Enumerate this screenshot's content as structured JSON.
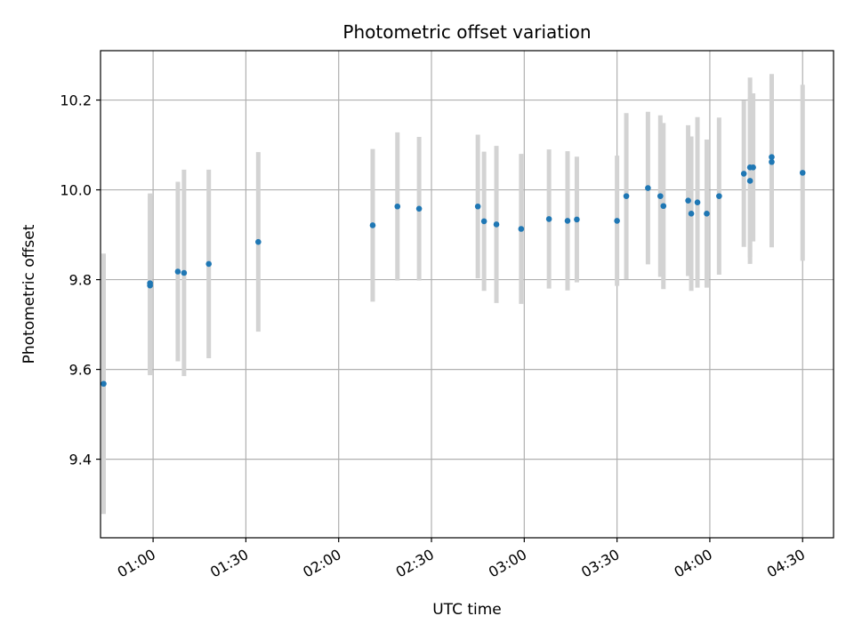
{
  "chart_data": {
    "type": "scatter",
    "title": "Photometric offset variation",
    "xlabel": "UTC time",
    "ylabel": "Photometric offset",
    "x_ticks": [
      "01:00",
      "01:30",
      "02:00",
      "02:30",
      "03:00",
      "03:30",
      "04:00",
      "04:30"
    ],
    "y_ticks": [
      "9.4",
      "9.6",
      "9.8",
      "10.0",
      "10.2"
    ],
    "xlim": [
      "00:43",
      "04:40"
    ],
    "ylim": [
      9.225,
      10.31
    ],
    "grid": true,
    "legend": "none",
    "colors": {
      "point": "#1f77b4",
      "errorbar": "#d3d3d3",
      "grid": "#b0b0b0"
    },
    "points": [
      {
        "t": "00:44",
        "y": 9.568,
        "err": 0.29
      },
      {
        "t": "00:59",
        "y": 9.787,
        "err": 0.2
      },
      {
        "t": "00:59",
        "y": 9.792,
        "err": 0.2
      },
      {
        "t": "01:08",
        "y": 9.818,
        "err": 0.2
      },
      {
        "t": "01:10",
        "y": 9.815,
        "err": 0.23
      },
      {
        "t": "01:18",
        "y": 9.835,
        "err": 0.21
      },
      {
        "t": "01:34",
        "y": 9.884,
        "err": 0.2
      },
      {
        "t": "02:11",
        "y": 9.921,
        "err": 0.17
      },
      {
        "t": "02:19",
        "y": 9.963,
        "err": 0.165
      },
      {
        "t": "02:26",
        "y": 9.958,
        "err": 0.16
      },
      {
        "t": "02:45",
        "y": 9.963,
        "err": 0.16
      },
      {
        "t": "02:47",
        "y": 9.93,
        "err": 0.155
      },
      {
        "t": "02:51",
        "y": 9.923,
        "err": 0.175
      },
      {
        "t": "02:59",
        "y": 9.913,
        "err": 0.167
      },
      {
        "t": "03:08",
        "y": 9.935,
        "err": 0.155
      },
      {
        "t": "03:14",
        "y": 9.931,
        "err": 0.155
      },
      {
        "t": "03:17",
        "y": 9.934,
        "err": 0.14
      },
      {
        "t": "03:30",
        "y": 9.931,
        "err": 0.145
      },
      {
        "t": "03:33",
        "y": 9.986,
        "err": 0.185
      },
      {
        "t": "03:40",
        "y": 10.004,
        "err": 0.17
      },
      {
        "t": "03:44",
        "y": 9.986,
        "err": 0.18
      },
      {
        "t": "03:45",
        "y": 9.964,
        "err": 0.185
      },
      {
        "t": "03:53",
        "y": 9.976,
        "err": 0.168
      },
      {
        "t": "03:54",
        "y": 9.947,
        "err": 0.172
      },
      {
        "t": "03:56",
        "y": 9.972,
        "err": 0.19
      },
      {
        "t": "03:59",
        "y": 9.947,
        "err": 0.165
      },
      {
        "t": "04:03",
        "y": 9.986,
        "err": 0.175
      },
      {
        "t": "04:11",
        "y": 10.036,
        "err": 0.163
      },
      {
        "t": "04:13",
        "y": 10.02,
        "err": 0.185
      },
      {
        "t": "04:13",
        "y": 10.05,
        "err": 0.2
      },
      {
        "t": "04:14",
        "y": 10.05,
        "err": 0.165
      },
      {
        "t": "04:20",
        "y": 10.073,
        "err": 0.185
      },
      {
        "t": "04:20",
        "y": 10.062,
        "err": 0.19
      },
      {
        "t": "04:30",
        "y": 10.038,
        "err": 0.196
      }
    ]
  }
}
